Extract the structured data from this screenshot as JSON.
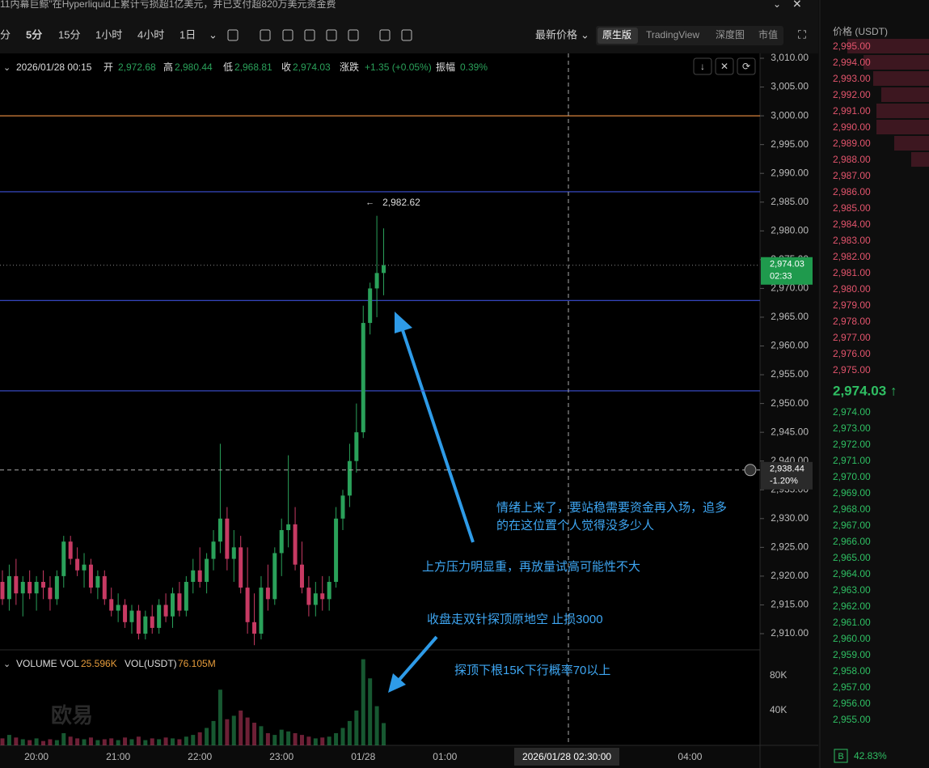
{
  "header": {
    "title": "11内幕巨鲸\"在Hyperliquid上累计亏损超1亿美元，并已支付超820万美元资金费"
  },
  "toolbar": {
    "intervals": [
      "分",
      "5分",
      "15分",
      "1小时",
      "4小时",
      "1日"
    ],
    "price_mode": "最新价格",
    "views": [
      "原生版",
      "TradingView",
      "深度图",
      "市值"
    ]
  },
  "info": {
    "time": "2026/01/28 00:15",
    "open_label": "开",
    "open": "2,972.68",
    "high_label": "高",
    "high": "2,980.44",
    "low_label": "低",
    "low": "2,968.81",
    "close_label": "收",
    "close": "2,974.03",
    "change_label": "涨跌",
    "change": "+1.35 (+0.05%)",
    "amp_label": "振幅",
    "amp": "0.39%"
  },
  "chart_data": {
    "type": "candlestick",
    "open": [
      2919,
      2916,
      2920,
      2917,
      2919,
      2917,
      2919,
      2918,
      2916,
      2920,
      2926,
      2923,
      2921,
      2922,
      2918,
      2920,
      2916,
      2914,
      2915,
      2912,
      2914,
      2910,
      2913,
      2911,
      2915,
      2913,
      2917,
      2914,
      2919,
      2921,
      2919,
      2923,
      2926,
      2930,
      2923,
      2925,
      2918,
      2912,
      2910,
      2918,
      2916,
      2924,
      2928,
      2929,
      2922,
      2918,
      2915,
      2917,
      2916,
      2919,
      2930,
      2934,
      2940,
      2945,
      2964,
      2970,
      2972.68
    ],
    "high": [
      2921,
      2922,
      2923,
      2920,
      2921,
      2920,
      2921,
      2920,
      2921,
      2927,
      2927,
      2925,
      2924,
      2923,
      2921,
      2921,
      2918,
      2917,
      2916,
      2915,
      2915,
      2914,
      2915,
      2916,
      2917,
      2918,
      2919,
      2920,
      2923,
      2925,
      2924,
      2928,
      2943,
      2932,
      2928,
      2927,
      2925,
      2917,
      2920,
      2922,
      2925,
      2930,
      2941,
      2932,
      2926,
      2920,
      2919,
      2920,
      2920,
      2932,
      2935,
      2943,
      2950,
      2967,
      2971,
      2982.62,
      2980.44
    ],
    "low": [
      2915,
      2914,
      2915,
      2913,
      2916,
      2914,
      2916,
      2914,
      2915,
      2918,
      2922,
      2920,
      2918,
      2917,
      2916,
      2915,
      2913,
      2912,
      2911,
      2910,
      2909,
      2909,
      2910,
      2910,
      2912,
      2911,
      2913,
      2913,
      2917,
      2918,
      2917,
      2921,
      2924,
      2921,
      2919,
      2917,
      2910,
      2908,
      2909,
      2914,
      2915,
      2920,
      2925,
      2921,
      2917,
      2913,
      2913,
      2914,
      2914,
      2918,
      2928,
      2932,
      2938,
      2944,
      2962,
      2965,
      2968.81
    ],
    "close": [
      2916,
      2920,
      2917,
      2919,
      2917,
      2919,
      2918,
      2916,
      2920,
      2926,
      2923,
      2921,
      2922,
      2918,
      2920,
      2916,
      2914,
      2915,
      2912,
      2914,
      2910,
      2913,
      2911,
      2915,
      2913,
      2917,
      2914,
      2919,
      2921,
      2919,
      2923,
      2926,
      2930,
      2923,
      2925,
      2918,
      2912,
      2910,
      2918,
      2916,
      2924,
      2928,
      2929,
      2922,
      2918,
      2915,
      2917,
      2916,
      2919,
      2930,
      2934,
      2940,
      2945,
      2964,
      2970,
      2972.68,
      2974.03
    ],
    "volume": [
      8000,
      12000,
      9000,
      7000,
      6000,
      8000,
      5000,
      7000,
      6000,
      14000,
      10000,
      8000,
      7000,
      9000,
      6000,
      7000,
      8000,
      6000,
      9000,
      7000,
      10000,
      6000,
      8000,
      7000,
      9000,
      8000,
      7000,
      10000,
      12000,
      15000,
      20000,
      28000,
      64000,
      30000,
      34000,
      40000,
      32000,
      26000,
      22000,
      14000,
      12000,
      18000,
      16000,
      14000,
      12000,
      10000,
      8000,
      9000,
      10000,
      14000,
      20000,
      28000,
      40000,
      99000,
      77000,
      45000,
      25596
    ],
    "up_color": "#2aa15a",
    "down_color": "#c73a63",
    "ylim": [
      2907,
      3012
    ],
    "yticks": [
      {
        "value": 3010,
        "label": "3,010.00"
      },
      {
        "value": 3005,
        "label": "3,005.00"
      },
      {
        "value": 3000,
        "label": "3,000.00"
      },
      {
        "value": 2995,
        "label": "2,995.00"
      },
      {
        "value": 2990,
        "label": "2,990.00"
      },
      {
        "value": 2985,
        "label": "2,985.00"
      },
      {
        "value": 2980,
        "label": "2,980.00"
      },
      {
        "value": 2975,
        "label": "2,975.00"
      },
      {
        "value": 2970,
        "label": "2,970.00"
      },
      {
        "value": 2965,
        "label": "2,965.00"
      },
      {
        "value": 2960,
        "label": "2,960.00"
      },
      {
        "value": 2955,
        "label": "2,955.00"
      },
      {
        "value": 2950,
        "label": "2,950.00"
      },
      {
        "value": 2945,
        "label": "2,945.00"
      },
      {
        "value": 2940,
        "label": "2,940.00"
      },
      {
        "value": 2935,
        "label": "2,935.00"
      },
      {
        "value": 2930,
        "label": "2,930.00"
      },
      {
        "value": 2925,
        "label": "2,925.00"
      },
      {
        "value": 2920,
        "label": "2,920.00"
      },
      {
        "value": 2915,
        "label": "2,915.00"
      },
      {
        "value": 2910,
        "label": "2,910.00"
      }
    ],
    "vticks": [
      {
        "value": 80000,
        "label": "80K"
      },
      {
        "value": 40000,
        "label": "40K"
      }
    ],
    "xticks": [
      {
        "value": 5,
        "label": "20:00"
      },
      {
        "value": 17,
        "label": "21:00"
      },
      {
        "value": 29,
        "label": "22:00"
      },
      {
        "value": 41,
        "label": "23:00"
      },
      {
        "value": 53,
        "label": "01/28"
      },
      {
        "value": 65,
        "label": "01:00"
      },
      {
        "value": 101,
        "label": "04:00"
      }
    ],
    "levels": [
      {
        "value": 3000,
        "color": "#d9843c"
      },
      {
        "value": 2986.8,
        "color": "#3d4fd6"
      },
      {
        "value": 2967.9,
        "color": "#3d4fd6"
      },
      {
        "value": 2952.2,
        "color": "#3d4fd6"
      }
    ],
    "max_label": "2,982.62",
    "last": {
      "value": 2974.03,
      "label": "2,974.03",
      "countdown": "02:33"
    },
    "crosshair": {
      "value": 2938.44,
      "label": "2,938.44",
      "change": "-1.20%",
      "time": "2026/01/28 02:30:00"
    },
    "volume_legend": {
      "name": "VOLUME",
      "vol_label": "VOL",
      "vol": "25.596K",
      "usdt_label": "VOL(USDT)",
      "usdt": "76.105M"
    },
    "annotations": [
      "情绪上来了，要站稳需要资金再入场，追多",
      "的在这位置个人觉得没多少人",
      "上方压力明显重，再放量试高可能性不大",
      "收盘走双针探顶原地空 止损3000",
      "探顶下根15K下行概率70以上"
    ],
    "watermark": "欧易"
  },
  "orderbook": {
    "header": "价格 (USDT)",
    "asks": [
      "2,995.00",
      "2,994.00",
      "2,993.00",
      "2,992.00",
      "2,991.00",
      "2,990.00",
      "2,989.00",
      "2,988.00",
      "2,987.00",
      "2,986.00",
      "2,985.00",
      "2,984.00",
      "2,983.00",
      "2,982.00",
      "2,981.00",
      "2,980.00",
      "2,979.00",
      "2,978.00",
      "2,977.00",
      "2,976.00",
      "2,975.00"
    ],
    "mid": "2,974.03 ↑",
    "bids": [
      "2,974.00",
      "2,973.00",
      "2,972.00",
      "2,971.00",
      "2,970.00",
      "2,969.00",
      "2,968.00",
      "2,967.00",
      "2,966.00",
      "2,965.00",
      "2,964.00",
      "2,963.00",
      "2,962.00",
      "2,961.00",
      "2,960.00",
      "2,959.00",
      "2,958.00",
      "2,957.00",
      "2,956.00",
      "2,955.00"
    ],
    "footer_tag": "B",
    "footer_pct": "42.83%"
  }
}
